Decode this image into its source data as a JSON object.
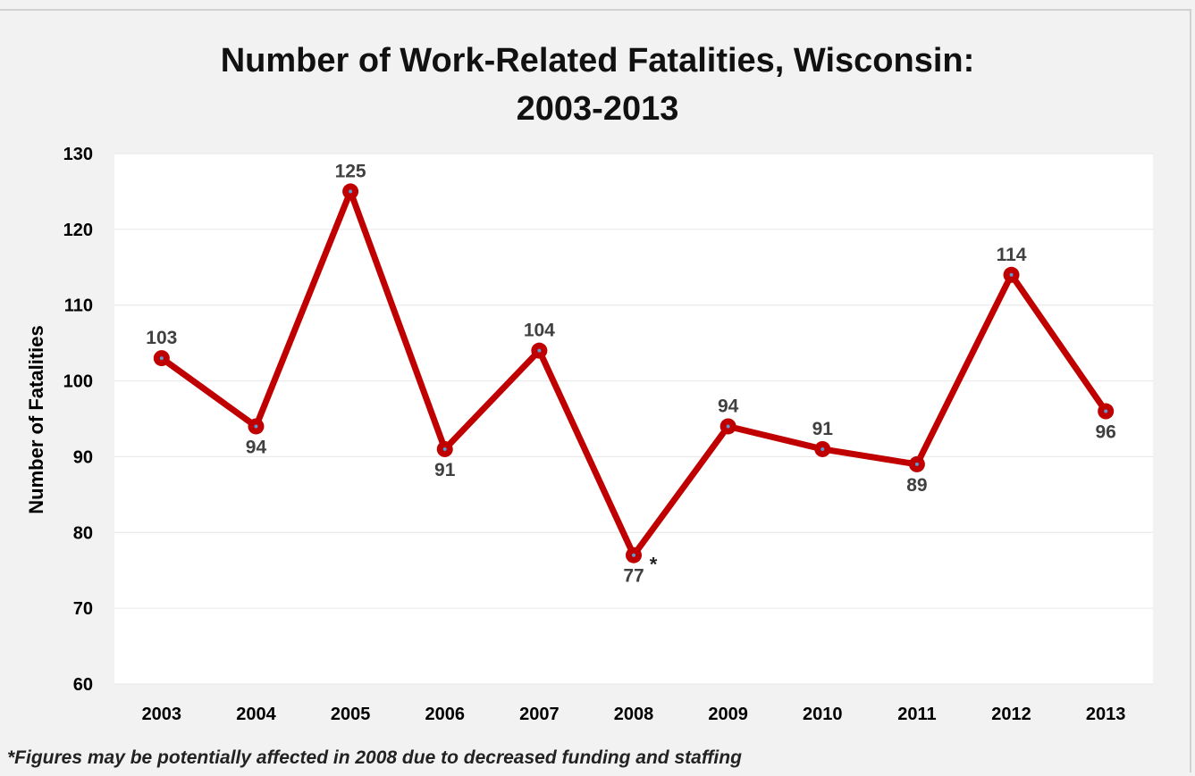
{
  "chart_data": {
    "type": "line",
    "title_lines": [
      "Number of Work-Related Fatalities, Wisconsin:",
      "2003-2013"
    ],
    "xlabel": "",
    "ylabel": "Number of Fatalities",
    "categories": [
      "2003",
      "2004",
      "2005",
      "2006",
      "2007",
      "2008",
      "2009",
      "2010",
      "2011",
      "2012",
      "2013"
    ],
    "series": [
      {
        "values": [
          103,
          94,
          125,
          91,
          104,
          77,
          94,
          91,
          89,
          114,
          96
        ]
      }
    ],
    "data_labels": [
      "103",
      "94",
      "125",
      "91",
      "104",
      "77",
      "94",
      "91",
      "89",
      "114",
      "96"
    ],
    "annotation": {
      "category": "2008",
      "text": "*"
    },
    "ylim": [
      60,
      130
    ],
    "yticks": [
      "60",
      "70",
      "80",
      "90",
      "100",
      "110",
      "120",
      "130"
    ],
    "grid": true,
    "legend": "none",
    "footnote": "*Figures may be potentially affected in 2008 due to decreased funding and staffing",
    "colors": {
      "line": "#c00000",
      "marker_center": "#5b9bd5",
      "plot_bg": "#ffffff",
      "chart_bg": "#f2f2f2",
      "grid": "#e6e6e6"
    }
  }
}
